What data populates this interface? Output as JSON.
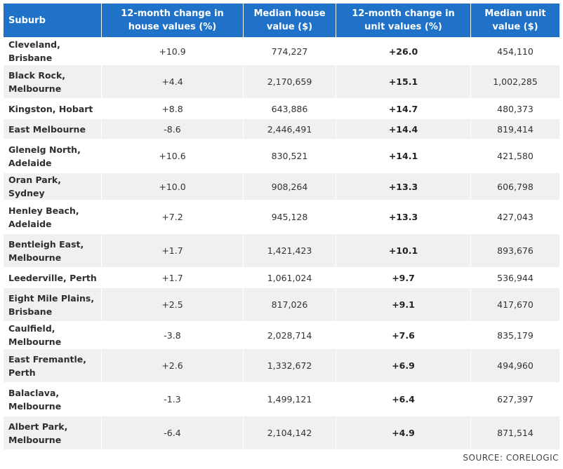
{
  "table": {
    "headers": {
      "suburb": "Suburb",
      "house_change": "12-month change in house values (%)",
      "house_value": "Median house value ($)",
      "unit_change": "12-month change in unit values (%)",
      "unit_value": "Median unit value ($)"
    },
    "rows": [
      {
        "suburb": "Cleveland, Brisbane",
        "house_change": "+10.9",
        "house_value": "774,227",
        "unit_change": "+26.0",
        "unit_value": "454,110"
      },
      {
        "suburb": "Black Rock, Melbourne",
        "house_change": "+4.4",
        "house_value": "2,170,659",
        "unit_change": "+15.1",
        "unit_value": "1,002,285"
      },
      {
        "suburb": "Kingston, Hobart",
        "house_change": "+8.8",
        "house_value": "643,886",
        "unit_change": "+14.7",
        "unit_value": "480,373"
      },
      {
        "suburb": "East Melbourne",
        "house_change": "-8.6",
        "house_value": "2,446,491",
        "unit_change": "+14.4",
        "unit_value": "819,414"
      },
      {
        "suburb": "Glenelg North, Adelaide",
        "house_change": "+10.6",
        "house_value": "830,521",
        "unit_change": "+14.1",
        "unit_value": "421,580"
      },
      {
        "suburb": "Oran Park, Sydney",
        "house_change": "+10.0",
        "house_value": "908,264",
        "unit_change": "+13.3",
        "unit_value": "606,798"
      },
      {
        "suburb": "Henley Beach, Adelaide",
        "house_change": "+7.2",
        "house_value": "945,128",
        "unit_change": "+13.3",
        "unit_value": "427,043"
      },
      {
        "suburb": "Bentleigh East, Melbourne",
        "house_change": "+1.7",
        "house_value": "1,421,423",
        "unit_change": "+10.1",
        "unit_value": "893,676"
      },
      {
        "suburb": "Leederville, Perth",
        "house_change": "+1.7",
        "house_value": "1,061,024",
        "unit_change": "+9.7",
        "unit_value": "536,944"
      },
      {
        "suburb": "Eight Mile Plains, Brisbane",
        "house_change": "+2.5",
        "house_value": "817,026",
        "unit_change": "+9.1",
        "unit_value": "417,670"
      },
      {
        "suburb": "Caulfield, Melbourne",
        "house_change": "-3.8",
        "house_value": "2,028,714",
        "unit_change": "+7.6",
        "unit_value": "835,179"
      },
      {
        "suburb": "East Fremantle, Perth",
        "house_change": "+2.6",
        "house_value": "1,332,672",
        "unit_change": "+6.9",
        "unit_value": "494,960"
      },
      {
        "suburb": "Balaclava, Melbourne",
        "house_change": "-1.3",
        "house_value": "1,499,121",
        "unit_change": "+6.4",
        "unit_value": "627,397"
      },
      {
        "suburb": "Albert Park, Melbourne",
        "house_change": "-6.4",
        "house_value": "2,104,142",
        "unit_change": "+4.9",
        "unit_value": "871,514"
      }
    ]
  },
  "source": "SOURCE: CORELOGIC",
  "colors": {
    "header_bg": "#1f72c7",
    "header_text": "#ffffff",
    "stripe": "#f0f0f0"
  }
}
